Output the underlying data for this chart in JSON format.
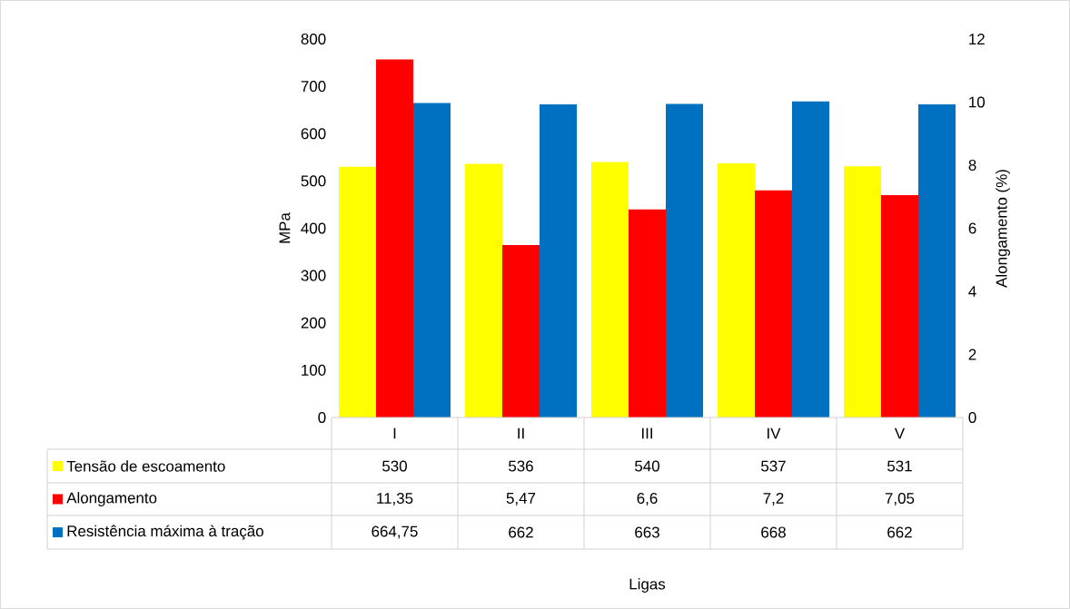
{
  "chart_data": {
    "type": "bar",
    "annotations": [
      "Ligas"
    ],
    "ylabel": "MPa",
    "y2label": "Alongamento (%)",
    "categories": [
      "I",
      "II",
      "III",
      "IV",
      "V"
    ],
    "series": [
      {
        "name": "Tensão de escoamento",
        "color": "#ffff00",
        "values": [
          530,
          536,
          540,
          537,
          531
        ],
        "value_labels": [
          "530",
          "536",
          "540",
          "537",
          "531"
        ]
      },
      {
        "name": "Alongamento",
        "color": "#ff0000",
        "axis": "y2",
        "values": [
          11.35,
          5.47,
          6.6,
          7.2,
          7.05
        ],
        "value_labels": [
          "11,35",
          "5,47",
          "6,6",
          "7,2",
          "7,05"
        ]
      },
      {
        "name": "Resistência máxima à tração",
        "color": "#0070c0",
        "values": [
          664.75,
          662,
          663,
          668,
          662
        ],
        "value_labels": [
          "664,75",
          "662",
          "663",
          "668",
          "662"
        ]
      }
    ],
    "ylim": [
      0,
      800
    ],
    "yticks": [
      0,
      100,
      200,
      300,
      400,
      500,
      600,
      700,
      800
    ],
    "y2lim": [
      0,
      12
    ],
    "y2ticks": [
      0,
      2,
      4,
      6,
      8,
      10,
      12
    ],
    "legend": "bottom"
  }
}
